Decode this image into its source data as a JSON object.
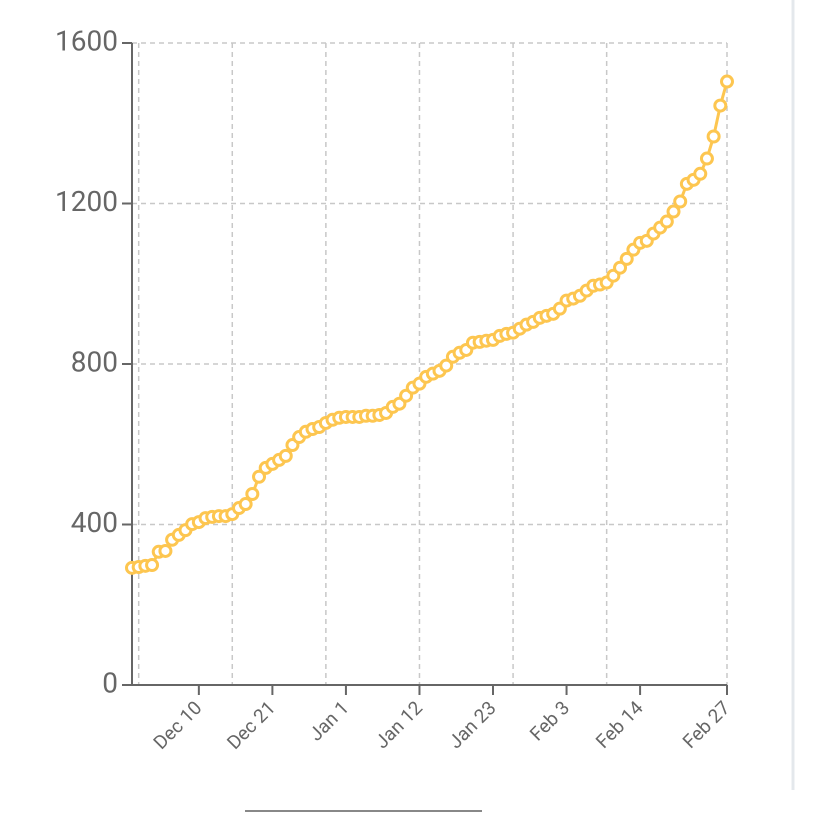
{
  "chart_data": {
    "type": "line",
    "color": "#fdc650",
    "x": [
      "Nov 30",
      "Dec 1",
      "Dec 2",
      "Dec 3",
      "Dec 4",
      "Dec 5",
      "Dec 6",
      "Dec 7",
      "Dec 8",
      "Dec 9",
      "Dec 10",
      "Dec 11",
      "Dec 12",
      "Dec 13",
      "Dec 14",
      "Dec 15",
      "Dec 16",
      "Dec 17",
      "Dec 18",
      "Dec 19",
      "Dec 20",
      "Dec 21",
      "Dec 22",
      "Dec 23",
      "Dec 24",
      "Dec 25",
      "Dec 26",
      "Dec 27",
      "Dec 28",
      "Dec 29",
      "Dec 30",
      "Dec 31",
      "Jan 1",
      "Jan 2",
      "Jan 3",
      "Jan 4",
      "Jan 5",
      "Jan 6",
      "Jan 7",
      "Jan 8",
      "Jan 9",
      "Jan 10",
      "Jan 11",
      "Jan 12",
      "Jan 13",
      "Jan 14",
      "Jan 15",
      "Jan 16",
      "Jan 17",
      "Jan 18",
      "Jan 19",
      "Jan 20",
      "Jan 21",
      "Jan 22",
      "Jan 23",
      "Jan 24",
      "Jan 25",
      "Jan 26",
      "Jan 27",
      "Jan 28",
      "Jan 29",
      "Jan 30",
      "Jan 31",
      "Feb 1",
      "Feb 2",
      "Feb 3",
      "Feb 4",
      "Feb 5",
      "Feb 6",
      "Feb 7",
      "Feb 8",
      "Feb 9",
      "Feb 10",
      "Feb 11",
      "Feb 12",
      "Feb 13",
      "Feb 14",
      "Feb 15",
      "Feb 16",
      "Feb 17",
      "Feb 18",
      "Feb 19",
      "Feb 20",
      "Feb 21",
      "Feb 22",
      "Feb 23",
      "Feb 24",
      "Feb 25",
      "Feb 26",
      "Feb 27"
    ],
    "values": [
      292,
      294,
      297,
      299,
      332,
      334,
      362,
      374,
      386,
      401,
      406,
      416,
      419,
      421,
      421,
      426,
      441,
      451,
      476,
      519,
      541,
      551,
      561,
      571,
      598,
      618,
      631,
      638,
      643,
      653,
      661,
      666,
      668,
      668,
      668,
      671,
      671,
      673,
      678,
      693,
      701,
      721,
      741,
      751,
      768,
      776,
      783,
      796,
      818,
      828,
      835,
      853,
      855,
      858,
      860,
      870,
      875,
      878,
      888,
      898,
      905,
      915,
      920,
      925,
      938,
      958,
      963,
      970,
      983,
      995,
      998,
      1003,
      1020,
      1040,
      1062,
      1085,
      1102,
      1107,
      1125,
      1140,
      1155,
      1180,
      1205,
      1249,
      1259,
      1274,
      1312,
      1367,
      1444,
      1504
    ],
    "xlim": [
      "Nov 30",
      "Feb 27"
    ],
    "xticks": [
      "Dec 10",
      "Dec 21",
      "Jan 1",
      "Jan 12",
      "Jan 23",
      "Feb 3",
      "Feb 14",
      "Feb 27"
    ],
    "xgrid": [
      "Dec 1",
      "Dec 15",
      "Dec 29",
      "Jan 12",
      "Jan 26",
      "Feb 9"
    ],
    "ylim": [
      0,
      1600
    ],
    "yticks": [
      0,
      400,
      800,
      1200,
      1600
    ],
    "grid": true
  }
}
